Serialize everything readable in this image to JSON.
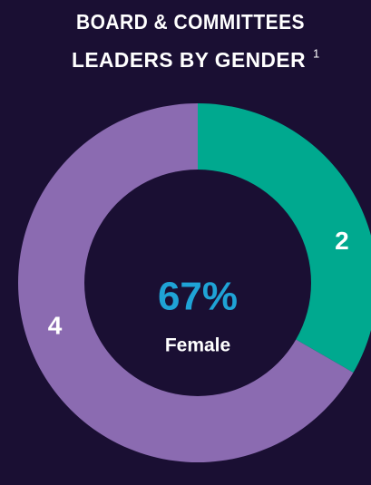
{
  "chart_data": {
    "type": "donut",
    "title_lines": [
      "BOARD & COMMITTEES",
      "LEADERS BY GENDER"
    ],
    "footnote": "1",
    "values": [
      2,
      4
    ],
    "colors": [
      "#00a98f",
      "#8b6bb1"
    ],
    "center_text": "67%",
    "center_caption": "Female"
  }
}
